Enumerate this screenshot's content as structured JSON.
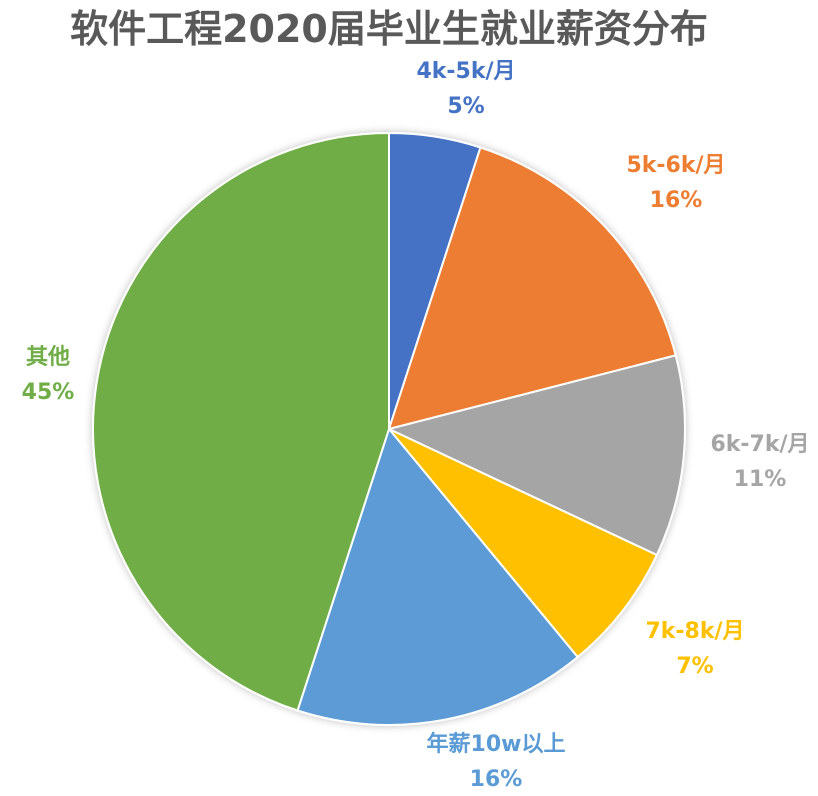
{
  "chart_data": {
    "type": "pie",
    "title": "软件工程2020届毕业生就业薪资分布",
    "colors": {
      "title": "#595959",
      "slice_border": "#ffffff"
    },
    "slices": [
      {
        "label": "4k-5k/月",
        "value": 5,
        "value_label": "5%",
        "color": "#4472C4"
      },
      {
        "label": "5k-6k/月",
        "value": 16,
        "value_label": "16%",
        "color": "#ED7D31"
      },
      {
        "label": "6k-7k/月",
        "value": 11,
        "value_label": "11%",
        "color": "#A5A5A5"
      },
      {
        "label": "7k-8k/月",
        "value": 7,
        "value_label": "7%",
        "color": "#FFC000"
      },
      {
        "label": "年薪10w以上",
        "value": 16,
        "value_label": "16%",
        "color": "#5B9BD5"
      },
      {
        "label": "其他",
        "value": 45,
        "value_label": "45%",
        "color": "#70AD47"
      }
    ]
  }
}
